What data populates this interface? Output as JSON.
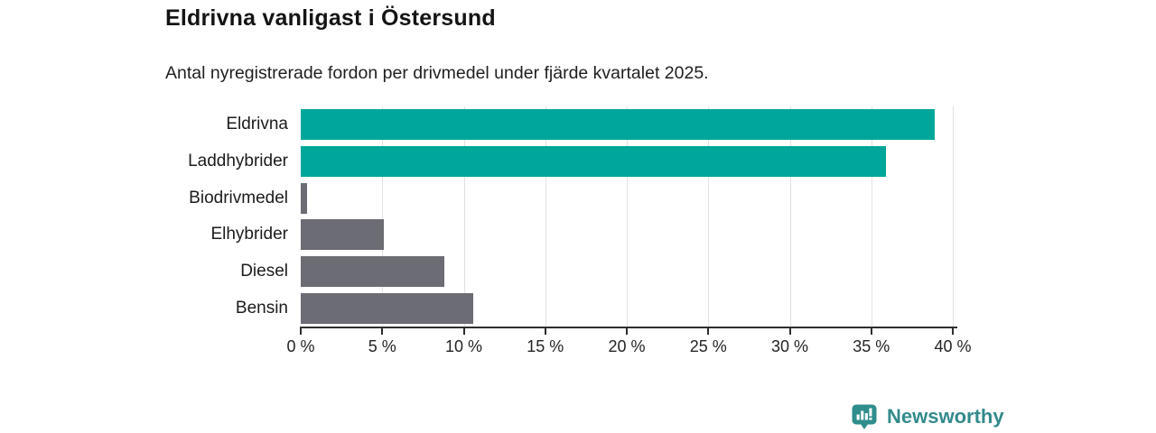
{
  "title": "Eldrivna vanligast i Östersund",
  "subtitle": "Antal nyregistrerade fordon per drivmedel under fjärde kvartalet 2025.",
  "chart_data": {
    "type": "bar",
    "orientation": "horizontal",
    "categories": [
      "Eldrivna",
      "Laddhybrider",
      "Biodrivmedel",
      "Elhybrider",
      "Diesel",
      "Bensin"
    ],
    "values": [
      38.9,
      35.9,
      0.4,
      5.1,
      8.8,
      10.6
    ],
    "unit": "%",
    "title": "Eldrivna vanligast i Östersund",
    "subtitle": "Antal nyregistrerade fordon per drivmedel under fjärde kvartalet 2025.",
    "xlabel": "",
    "ylabel": "",
    "xlim": [
      0,
      40
    ],
    "x_tick_values": [
      0,
      5,
      10,
      15,
      20,
      25,
      30,
      35,
      40
    ],
    "x_tick_labels": [
      "0 %",
      "5 %",
      "10 %",
      "15 %",
      "20 %",
      "25 %",
      "30 %",
      "35 %",
      "40 %"
    ],
    "grid": "vertical-only",
    "legend": "none",
    "highlight_color": "#00a69a",
    "default_color": "#6c6c74",
    "bar_colors": [
      "#00a69a",
      "#00a69a",
      "#6c6c74",
      "#6c6c74",
      "#6c6c74",
      "#6c6c74"
    ]
  },
  "colors": {
    "gridline": "#e1e1e4",
    "axis": "#2e2e2e",
    "text": "#1c1c1c",
    "brand_teal": "#338a8c",
    "logo_fill": "#2f8e8c"
  },
  "footer": {
    "brand": "Newsworthy",
    "logo_icon": "newsworthy-barchart-pin-icon"
  }
}
